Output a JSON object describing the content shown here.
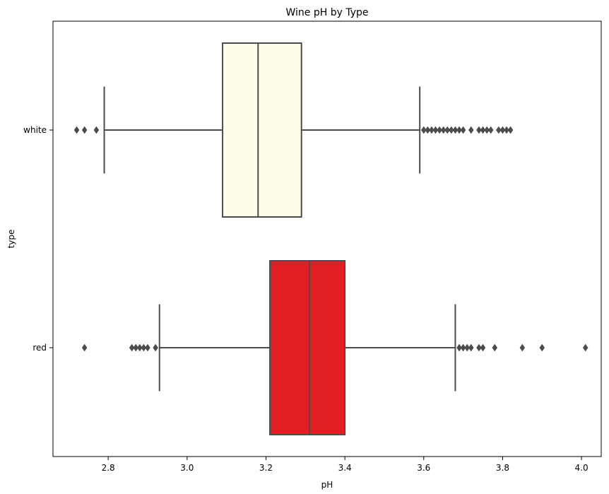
{
  "chart_data": {
    "type": "boxplot",
    "orientation": "horizontal",
    "title": "Wine pH by Type",
    "xlabel": "pH",
    "ylabel": "type",
    "xlim": [
      2.66,
      4.05
    ],
    "xticks": [
      "2.8",
      "3.0",
      "3.2",
      "3.4",
      "3.6",
      "3.8",
      "4.0"
    ],
    "grid": false,
    "categories": [
      "white",
      "red"
    ],
    "series": [
      {
        "name": "white",
        "color": "#fffee8",
        "whisker_low": 2.79,
        "q1": 3.09,
        "median": 3.18,
        "q3": 3.29,
        "whisker_high": 3.59,
        "outliers": [
          2.72,
          2.74,
          2.77,
          3.6,
          3.61,
          3.62,
          3.63,
          3.64,
          3.65,
          3.66,
          3.67,
          3.68,
          3.69,
          3.7,
          3.72,
          3.74,
          3.75,
          3.76,
          3.77,
          3.79,
          3.8,
          3.81,
          3.82
        ]
      },
      {
        "name": "red",
        "color": "#e11e21",
        "whisker_low": 2.93,
        "q1": 3.21,
        "median": 3.31,
        "q3": 3.4,
        "whisker_high": 3.68,
        "outliers": [
          2.74,
          2.86,
          2.87,
          2.88,
          2.89,
          2.9,
          2.92,
          3.69,
          3.7,
          3.71,
          3.72,
          3.74,
          3.75,
          3.78,
          3.85,
          3.9,
          4.01
        ]
      }
    ],
    "line_color": "#4c4c4c"
  }
}
